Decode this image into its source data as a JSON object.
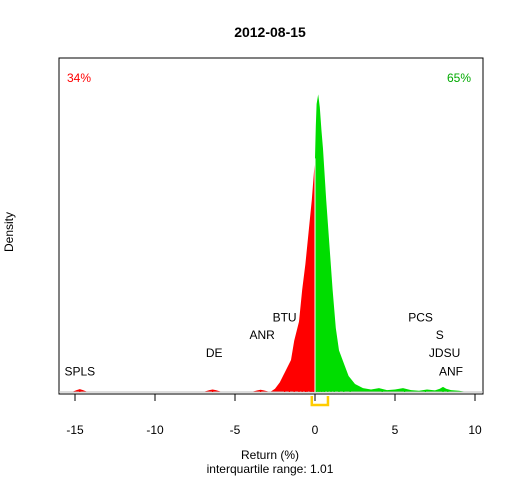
{
  "chart_data": {
    "type": "area",
    "title": "2012-08-15",
    "xlabel": "Return (%)",
    "subtitle": "interquartile range: 1.01",
    "ylabel": "Density",
    "xlim": [
      -16,
      10.5
    ],
    "xticks": [
      -15,
      -10,
      -5,
      0,
      5,
      10
    ],
    "ylim": [
      0,
      1
    ],
    "pct_negative": "34%",
    "pct_positive": "65%",
    "colors": {
      "negative": "#ff0000",
      "positive": "#00dd00",
      "iqr": "#ffcc00",
      "baseline": "#bbbbbb"
    },
    "iqr": [
      -0.2,
      0.81
    ],
    "density": {
      "x": [
        -16,
        -15.2,
        -14.9,
        -14.7,
        -14.5,
        -14.2,
        -7,
        -6.6,
        -6.4,
        -6.2,
        -5.8,
        -4,
        -3.6,
        -3.4,
        -3.2,
        -2.8,
        -2.5,
        -2.2,
        -2.0,
        -1.8,
        -1.5,
        -1.3,
        -1.0,
        -0.8,
        -0.6,
        -0.4,
        -0.2,
        0.0,
        0.05,
        0.1,
        0.2,
        0.3,
        0.4,
        0.5,
        0.7,
        0.9,
        1.1,
        1.3,
        1.5,
        1.8,
        2.1,
        2.5,
        3.0,
        3.5,
        4.0,
        4.5,
        5.0,
        5.5,
        6.0,
        6.5,
        7.0,
        7.5,
        7.8,
        8.0,
        8.2,
        8.5,
        9.0,
        9.5,
        10.5
      ],
      "y": [
        0,
        0,
        0.006,
        0.009,
        0.006,
        0,
        0,
        0.006,
        0.008,
        0.006,
        0,
        0,
        0.005,
        0.007,
        0.005,
        0,
        0.01,
        0.03,
        0.05,
        0.07,
        0.1,
        0.16,
        0.22,
        0.32,
        0.4,
        0.5,
        0.6,
        0.73,
        0.83,
        0.9,
        0.93,
        0.89,
        0.82,
        0.76,
        0.6,
        0.46,
        0.32,
        0.2,
        0.13,
        0.09,
        0.05,
        0.025,
        0.012,
        0.008,
        0.012,
        0.006,
        0.008,
        0.012,
        0.006,
        0.004,
        0.008,
        0.005,
        0.01,
        0.016,
        0.01,
        0.006,
        0.004,
        0,
        0
      ]
    },
    "rug_negative": [
      -14.7,
      -6.4,
      -3.4,
      -1.9,
      -1.6,
      -1.3,
      -1.0,
      -0.8,
      -0.6,
      -0.5,
      -0.3,
      -0.2,
      -0.1
    ],
    "rug_positive": [
      0.1,
      0.2,
      0.3,
      0.4,
      0.5,
      0.6,
      0.8,
      1.0,
      1.2,
      1.5,
      1.8,
      2.2,
      4.2,
      5.6,
      6.9,
      8.0,
      8.3
    ],
    "annotations": [
      {
        "text": "SPLS",
        "x": -14.7,
        "y": 0.052
      },
      {
        "text": "DE",
        "x": -6.3,
        "y": 0.11
      },
      {
        "text": "ANR",
        "x": -3.3,
        "y": 0.165
      },
      {
        "text": "BTU",
        "x": -1.9,
        "y": 0.22
      },
      {
        "text": "PCS",
        "x": 6.6,
        "y": 0.22
      },
      {
        "text": "S",
        "x": 7.8,
        "y": 0.165
      },
      {
        "text": "JDSU",
        "x": 8.1,
        "y": 0.11
      },
      {
        "text": "ANF",
        "x": 8.5,
        "y": 0.052
      }
    ]
  }
}
